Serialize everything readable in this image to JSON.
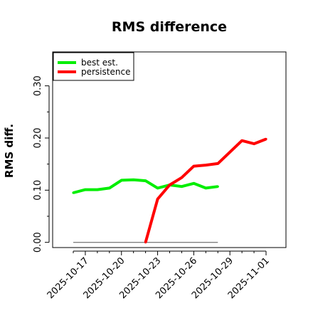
{
  "chart_data": {
    "type": "line",
    "title": "RMS difference",
    "xlabel": "",
    "ylabel": "RMS diff.",
    "x_dates": [
      "2025-10-16",
      "2025-10-17",
      "2025-10-18",
      "2025-10-19",
      "2025-10-20",
      "2025-10-21",
      "2025-10-22",
      "2025-10-23",
      "2025-10-24",
      "2025-10-25",
      "2025-10-26",
      "2025-10-27",
      "2025-10-28",
      "2025-10-29",
      "2025-10-30",
      "2025-10-31",
      "2025-11-01"
    ],
    "x_tick_labels": [
      "2025-10-17",
      "2025-10-20",
      "2025-10-23",
      "2025-10-26",
      "2025-10-29",
      "2025-11-01"
    ],
    "y_ticks": [
      0.0,
      0.1,
      0.2,
      0.3
    ],
    "y_tick_labels": [
      "0.00",
      "0.10",
      "0.20",
      "0.30"
    ],
    "ylim": [
      -0.01,
      0.365
    ],
    "legend_position": "top-left",
    "baseline": {
      "value": 0.0,
      "x_from": "2025-10-16",
      "x_to": "2025-10-28",
      "color": "#808080"
    },
    "series": [
      {
        "name": "best est.",
        "color": "#00ee00",
        "x": [
          "2025-10-16",
          "2025-10-17",
          "2025-10-18",
          "2025-10-19",
          "2025-10-20",
          "2025-10-21",
          "2025-10-22",
          "2025-10-23",
          "2025-10-24",
          "2025-10-25",
          "2025-10-26",
          "2025-10-27",
          "2025-10-28"
        ],
        "values": [
          0.095,
          0.101,
          0.101,
          0.104,
          0.119,
          0.12,
          0.118,
          0.104,
          0.11,
          0.107,
          0.113,
          0.104,
          0.107
        ]
      },
      {
        "name": "persistence",
        "color": "#ff0000",
        "x": [
          "2025-10-22",
          "2025-10-23",
          "2025-10-24",
          "2025-10-25",
          "2025-10-26",
          "2025-10-27",
          "2025-10-28",
          "2025-10-29",
          "2025-10-30",
          "2025-10-31",
          "2025-11-01"
        ],
        "values": [
          0.0,
          0.083,
          0.11,
          0.124,
          0.146,
          0.148,
          0.151,
          0.173,
          0.195,
          0.189,
          0.198
        ]
      }
    ]
  }
}
